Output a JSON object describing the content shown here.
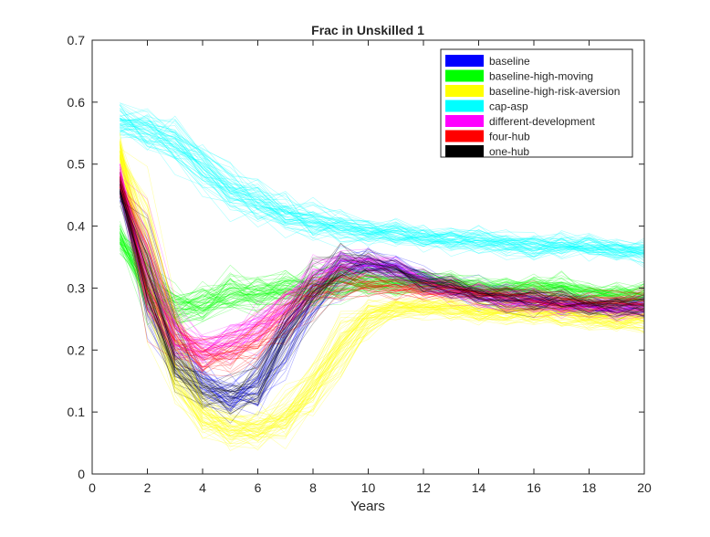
{
  "chart_data": {
    "type": "line",
    "title": "Frac in Unskilled 1",
    "xlabel": "Years",
    "ylabel": "",
    "xlim": [
      0,
      20
    ],
    "ylim": [
      0,
      0.7
    ],
    "xticks": [
      0,
      2,
      4,
      6,
      8,
      10,
      12,
      14,
      16,
      18,
      20
    ],
    "xtick_labels": [
      "0",
      "2",
      "4",
      "6",
      "8",
      "10",
      "12",
      "14",
      "16",
      "18",
      "20"
    ],
    "yticks": [
      0,
      0.1,
      0.2,
      0.3,
      0.4,
      0.5,
      0.6,
      0.7
    ],
    "ytick_labels": [
      "0",
      "0.1",
      "0.2",
      "0.3",
      "0.4",
      "0.5",
      "0.6",
      "0.7"
    ],
    "grid": false,
    "legend_position": "top-right",
    "x": [
      1,
      2,
      3,
      4,
      5,
      6,
      7,
      8,
      9,
      10,
      11,
      12,
      13,
      14,
      15,
      16,
      17,
      18,
      19,
      20
    ],
    "series": [
      {
        "name": "baseline",
        "color": "#0000ff",
        "runs": 40,
        "values": [
          0.46,
          0.3,
          0.18,
          0.14,
          0.12,
          0.13,
          0.22,
          0.29,
          0.33,
          0.34,
          0.33,
          0.31,
          0.3,
          0.29,
          0.28,
          0.28,
          0.27,
          0.27,
          0.27,
          0.27
        ]
      },
      {
        "name": "baseline-high-moving",
        "color": "#00ff00",
        "runs": 60,
        "values": [
          0.38,
          0.3,
          0.26,
          0.28,
          0.29,
          0.29,
          0.3,
          0.3,
          0.31,
          0.31,
          0.31,
          0.31,
          0.31,
          0.3,
          0.3,
          0.3,
          0.3,
          0.29,
          0.29,
          0.29
        ]
      },
      {
        "name": "baseline-high-risk-aversion",
        "color": "#ffff00",
        "runs": 60,
        "values": [
          0.52,
          0.34,
          0.16,
          0.09,
          0.07,
          0.07,
          0.09,
          0.14,
          0.21,
          0.26,
          0.27,
          0.27,
          0.27,
          0.26,
          0.26,
          0.26,
          0.26,
          0.25,
          0.25,
          0.25
        ]
      },
      {
        "name": "cap-asp",
        "color": "#00ffff",
        "runs": 60,
        "values": [
          0.57,
          0.56,
          0.54,
          0.5,
          0.46,
          0.44,
          0.42,
          0.41,
          0.4,
          0.39,
          0.39,
          0.38,
          0.38,
          0.38,
          0.37,
          0.37,
          0.37,
          0.37,
          0.36,
          0.36
        ]
      },
      {
        "name": "different-development",
        "color": "#ff00ff",
        "runs": 45,
        "values": [
          0.48,
          0.3,
          0.21,
          0.2,
          0.22,
          0.24,
          0.27,
          0.31,
          0.34,
          0.34,
          0.33,
          0.31,
          0.3,
          0.29,
          0.28,
          0.28,
          0.27,
          0.27,
          0.27,
          0.27
        ]
      },
      {
        "name": "four-hub",
        "color": "#ff0000",
        "runs": 35,
        "values": [
          0.47,
          0.31,
          0.21,
          0.19,
          0.19,
          0.21,
          0.26,
          0.3,
          0.31,
          0.31,
          0.3,
          0.3,
          0.3,
          0.29,
          0.29,
          0.29,
          0.28,
          0.28,
          0.28,
          0.28
        ]
      },
      {
        "name": "one-hub",
        "color": "#000000",
        "runs": 30,
        "values": [
          0.46,
          0.3,
          0.17,
          0.13,
          0.12,
          0.13,
          0.23,
          0.3,
          0.34,
          0.34,
          0.33,
          0.31,
          0.3,
          0.29,
          0.28,
          0.28,
          0.28,
          0.27,
          0.27,
          0.27
        ]
      }
    ]
  }
}
